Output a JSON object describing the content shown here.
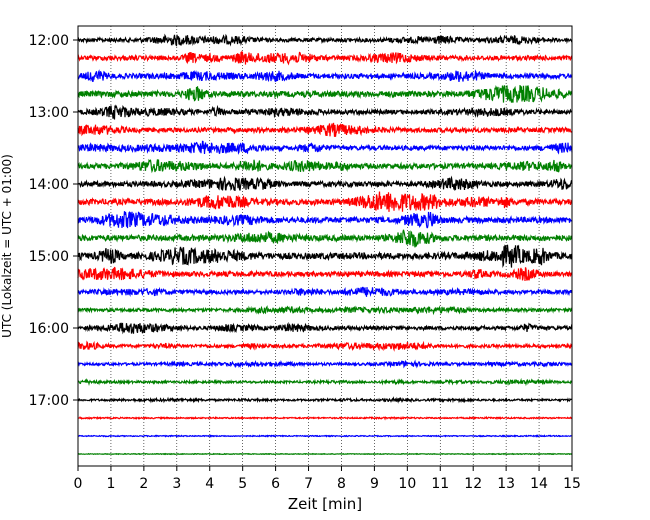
{
  "chart_data": {
    "type": "line",
    "subtype": "helicorder-seismogram",
    "title": "",
    "xlabel": "Zeit  [min]",
    "ylabel": "UTC (Lokalzeit = UTC + 01:00)",
    "xlim": [
      0,
      15
    ],
    "x_ticks": [
      "0",
      "1",
      "2",
      "3",
      "4",
      "5",
      "6",
      "7",
      "8",
      "9",
      "10",
      "11",
      "12",
      "13",
      "14",
      "15"
    ],
    "y_ticks": [
      "12:00",
      "13:00",
      "14:00",
      "15:00",
      "16:00",
      "17:00"
    ],
    "grid": "vertical dotted lines at each minute",
    "line_interval_minutes": 15,
    "trace_colors": [
      "#000000",
      "#ff0000",
      "#0000ff",
      "#008000"
    ],
    "traces": [
      {
        "start": "12:00",
        "amplitude": 0.6
      },
      {
        "start": "12:15",
        "amplitude": 0.7
      },
      {
        "start": "12:30",
        "amplitude": 0.8
      },
      {
        "start": "12:45",
        "amplitude": 0.9
      },
      {
        "start": "13:00",
        "amplitude": 0.7
      },
      {
        "start": "13:15",
        "amplitude": 0.7
      },
      {
        "start": "13:30",
        "amplitude": 0.7
      },
      {
        "start": "13:45",
        "amplitude": 0.8
      },
      {
        "start": "14:00",
        "amplitude": 0.8
      },
      {
        "start": "14:15",
        "amplitude": 0.9
      },
      {
        "start": "14:30",
        "amplitude": 0.9
      },
      {
        "start": "14:45",
        "amplitude": 0.9
      },
      {
        "start": "15:00",
        "amplitude": 1.0
      },
      {
        "start": "15:15",
        "amplitude": 0.8
      },
      {
        "start": "15:30",
        "amplitude": 0.6
      },
      {
        "start": "15:45",
        "amplitude": 0.5
      },
      {
        "start": "16:00",
        "amplitude": 0.6
      },
      {
        "start": "16:15",
        "amplitude": 0.5
      },
      {
        "start": "16:30",
        "amplitude": 0.4
      },
      {
        "start": "16:45",
        "amplitude": 0.35
      },
      {
        "start": "17:00",
        "amplitude": 0.3
      },
      {
        "start": "17:15",
        "amplitude": 0.2
      },
      {
        "start": "17:30",
        "amplitude": 0.15
      },
      {
        "start": "17:45",
        "amplitude": 0.1
      }
    ]
  }
}
